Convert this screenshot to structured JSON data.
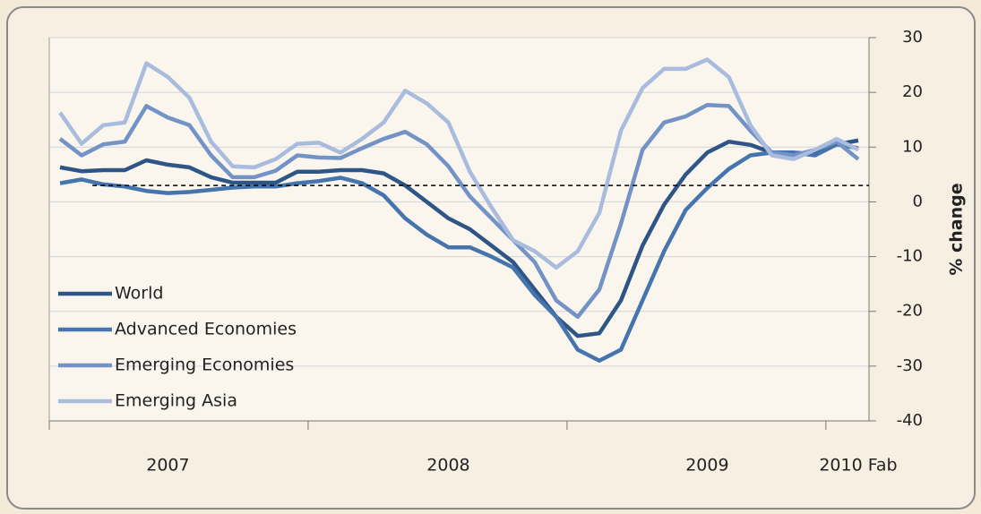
{
  "chart_data": {
    "type": "line",
    "categories": [
      null,
      null,
      null,
      null,
      null,
      "2007",
      null,
      null,
      null,
      null,
      null,
      null,
      null,
      null,
      null,
      null,
      null,
      null,
      "2008",
      null,
      null,
      null,
      null,
      null,
      null,
      null,
      null,
      null,
      null,
      null,
      "2009",
      null,
      null,
      null,
      null,
      null,
      null,
      "2010 Fab"
    ],
    "y_label": "% change",
    "ylim": [
      -40,
      30
    ],
    "yticks": [
      -40,
      -30,
      -20,
      -10,
      0,
      10,
      20,
      30
    ],
    "grid": true,
    "legend": "lower left",
    "reference_line": 3,
    "series": [
      {
        "name": "World",
        "color": "#2f5587",
        "values": [
          6.3,
          5.6,
          5.8,
          5.8,
          7.6,
          6.8,
          6.3,
          4.5,
          3.5,
          3.5,
          3.5,
          5.5,
          5.5,
          5.8,
          5.8,
          5.2,
          3,
          0,
          -3,
          -5,
          -8,
          -11,
          -16,
          -21,
          -24.5,
          -24,
          -18,
          -8,
          -0.5,
          5,
          9,
          11,
          10.4,
          9,
          9,
          8.7,
          10.5,
          11.2
        ]
      },
      {
        "name": "Advanced Economies",
        "color": "#4674ad",
        "values": [
          3.4,
          4.1,
          3.2,
          2.8,
          2.0,
          1.6,
          1.8,
          2.2,
          2.6,
          2.8,
          2.8,
          3.4,
          3.8,
          4.4,
          3.4,
          1.2,
          -3,
          -6,
          -8.3,
          -8.3,
          -10,
          -12,
          -17,
          -21,
          -27,
          -29,
          -27,
          -18,
          -9,
          -1.5,
          2.5,
          6,
          8.5,
          9,
          9,
          8.5,
          10.5,
          9.8
        ]
      },
      {
        "name": "Emerging Economies",
        "color": "#7393c6",
        "values": [
          11.5,
          8.5,
          10.5,
          11,
          17.5,
          15.4,
          14,
          8.5,
          4.5,
          4.5,
          5.7,
          8.5,
          8.1,
          8.0,
          9.8,
          11.5,
          12.8,
          10.5,
          6.5,
          1,
          -3,
          -7,
          -11,
          -18,
          -21,
          -16,
          -4,
          9.5,
          14.5,
          15.6,
          17.7,
          17.5,
          13,
          9,
          8.5,
          9.5,
          11,
          7.8
        ]
      },
      {
        "name": "Emerging Asia",
        "color": "#a9bcdd",
        "values": [
          16.3,
          10.6,
          14,
          14.5,
          25.3,
          22.8,
          19,
          11,
          6.5,
          6.3,
          7.8,
          10.6,
          10.8,
          9,
          11.5,
          14.5,
          20.3,
          18,
          14.5,
          5.5,
          -1,
          -7,
          -9,
          -12,
          -9,
          -2,
          13,
          20.8,
          24.3,
          24.3,
          26,
          22.8,
          14,
          8.5,
          7.8,
          9.5,
          11.5,
          9.5
        ]
      }
    ]
  }
}
